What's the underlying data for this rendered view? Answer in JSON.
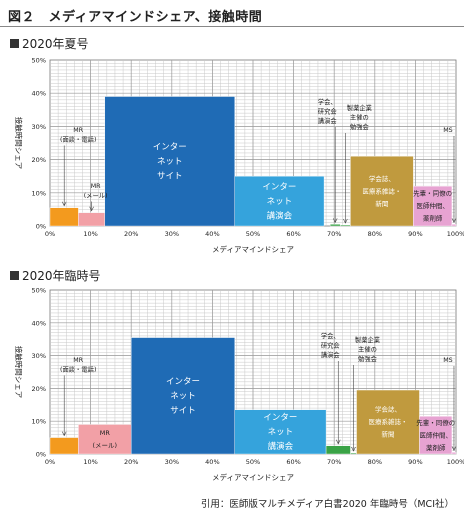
{
  "figure_title": "図２　メディアマインドシェア、接触時間",
  "source": "引用：医師版マルチメディア白書2020 年臨時号（MCI社）",
  "colors": {
    "mr_tel": "#f39a1e",
    "mr_mail": "#f2a0a6",
    "internet": "#1f6bb5",
    "lecture": "#35a3dc",
    "study": "#3aa346",
    "journal": "#c09a3e",
    "senior": "#e7a3d2"
  },
  "chart_data": [
    {
      "type": "bar",
      "title": "2020年夏号",
      "xlabel": "メディアマインドシェア",
      "ylabel": "接触時間シェア",
      "xlim": [
        0,
        100
      ],
      "ylim": [
        0,
        50
      ],
      "x_ticks": [
        "0%",
        "10%",
        "20%",
        "30%",
        "40%",
        "50%",
        "60%",
        "70%",
        "80%",
        "90%",
        "100%"
      ],
      "y_ticks": [
        "0%",
        "10%",
        "20%",
        "30%",
        "40%",
        "50%"
      ],
      "grid": true,
      "bars": [
        {
          "key": "mr_tel",
          "x0": 0,
          "x1": 7,
          "y": 5.5,
          "label": [
            "MR",
            "(面談・電話)"
          ],
          "label_mode": "above_arrow"
        },
        {
          "key": "mr_mail",
          "x0": 7,
          "x1": 13.5,
          "y": 4,
          "label": [
            "MR",
            "(メール)"
          ],
          "label_mode": "above_arrow"
        },
        {
          "key": "internet",
          "x0": 13.5,
          "x1": 45.5,
          "y": 39,
          "label": [
            "インター",
            "ネット",
            "サイト"
          ],
          "label_mode": "inside"
        },
        {
          "key": "lecture",
          "x0": 45.5,
          "x1": 67.5,
          "y": 15,
          "label": [
            "インター",
            "ネット",
            "講演会"
          ],
          "label_mode": "inside"
        },
        {
          "key": "study",
          "x0": 69,
          "x1": 71.5,
          "y": 0.5,
          "label": [
            "学会、",
            "研究会",
            "講演会"
          ],
          "label_mode": "above_arrow"
        },
        {
          "key": "study2",
          "x0": 71.5,
          "x1": 74,
          "y": 0.3,
          "label": [
            "製薬企業",
            "主催の",
            "勉強会"
          ],
          "label_mode": "above_arrow"
        },
        {
          "key": "journal",
          "x0": 74,
          "x1": 89.5,
          "y": 21,
          "label": [
            "学会誌、",
            "医療系雑誌・",
            "新聞"
          ],
          "label_mode": "inside"
        },
        {
          "key": "senior",
          "x0": 89.5,
          "x1": 99,
          "y": 12,
          "label": [
            "先輩・同僚の",
            "医師仲間、",
            "薬剤師"
          ],
          "label_mode": "inside"
        },
        {
          "key": "ms",
          "x0": 99,
          "x1": 100,
          "y": 0.5,
          "label": [
            "MS"
          ],
          "label_mode": "above_arrow"
        }
      ]
    },
    {
      "type": "bar",
      "title": "2020年臨時号",
      "xlabel": "メディアマインドシェア",
      "ylabel": "接触時間シェア",
      "xlim": [
        0,
        100
      ],
      "ylim": [
        0,
        50
      ],
      "x_ticks": [
        "0%",
        "10%",
        "20%",
        "30%",
        "40%",
        "50%",
        "60%",
        "70%",
        "80%",
        "90%",
        "100%"
      ],
      "y_ticks": [
        "0%",
        "10%",
        "20%",
        "30%",
        "40%",
        "50%"
      ],
      "grid": true,
      "bars": [
        {
          "key": "mr_tel",
          "x0": 0,
          "x1": 7,
          "y": 5,
          "label": [
            "MR",
            "(面談・電話)"
          ],
          "label_mode": "above_arrow"
        },
        {
          "key": "mr_mail",
          "x0": 7,
          "x1": 20,
          "y": 9,
          "label": [
            "MR",
            "(メール)"
          ],
          "label_mode": "inside"
        },
        {
          "key": "internet",
          "x0": 20,
          "x1": 45.5,
          "y": 35.5,
          "label": [
            "インター",
            "ネット",
            "サイト"
          ],
          "label_mode": "inside"
        },
        {
          "key": "lecture",
          "x0": 45.5,
          "x1": 68,
          "y": 13.5,
          "label": [
            "インター",
            "ネット",
            "講演会"
          ],
          "label_mode": "inside"
        },
        {
          "key": "study",
          "x0": 68,
          "x1": 74,
          "y": 2.5,
          "label": [
            "学会、",
            "研究会",
            "講演会"
          ],
          "label_mode": "above_arrow"
        },
        {
          "key": "study2",
          "x0": 74,
          "x1": 75.5,
          "y": 0.3,
          "label": [
            "製薬企業",
            "主催の",
            "勉強会"
          ],
          "label_mode": "above_arrow"
        },
        {
          "key": "journal",
          "x0": 75.5,
          "x1": 91,
          "y": 19.5,
          "label": [
            "学会誌、",
            "医療系雑誌・",
            "新聞"
          ],
          "label_mode": "inside"
        },
        {
          "key": "senior",
          "x0": 91,
          "x1": 99,
          "y": 11.5,
          "label": [
            "先輩・同僚の",
            "医師仲間、",
            "薬剤師"
          ],
          "label_mode": "inside"
        },
        {
          "key": "ms",
          "x0": 99,
          "x1": 100,
          "y": 0.5,
          "label": [
            "MS"
          ],
          "label_mode": "above_arrow"
        }
      ]
    }
  ]
}
